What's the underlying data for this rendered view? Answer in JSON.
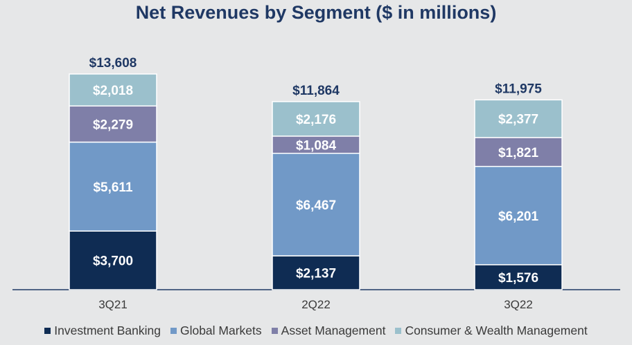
{
  "chart_data": {
    "type": "bar",
    "stacked": true,
    "title": "Net Revenues by Segment ($ in millions)",
    "categories": [
      "3Q21",
      "2Q22",
      "3Q22"
    ],
    "series": [
      {
        "name": "Investment Banking",
        "color": "#0f2c53",
        "values": [
          3700,
          2137,
          1576
        ],
        "labels": [
          "$3,700",
          "$2,137",
          "$1,576"
        ]
      },
      {
        "name": "Global Markets",
        "color": "#7199c7",
        "values": [
          5611,
          6467,
          6201
        ],
        "labels": [
          "$5,611",
          "$6,467",
          "$6,201"
        ]
      },
      {
        "name": "Asset Management",
        "color": "#7f7fa8",
        "values": [
          2279,
          1084,
          1821
        ],
        "labels": [
          "$2,279",
          "$1,084",
          "$1,821"
        ]
      },
      {
        "name": "Consumer & Wealth Management",
        "color": "#9bc0cc",
        "values": [
          2018,
          2176,
          2377
        ],
        "labels": [
          "$2,018",
          "$2,176",
          "$2,377"
        ]
      }
    ],
    "totals": [
      13608,
      11864,
      11975
    ],
    "total_labels": [
      "$13,608",
      "$11,864",
      "$11,975"
    ],
    "ylim": [
      0,
      13608
    ],
    "xlabel": "",
    "ylabel": "",
    "grid": false,
    "legend_position": "bottom"
  }
}
